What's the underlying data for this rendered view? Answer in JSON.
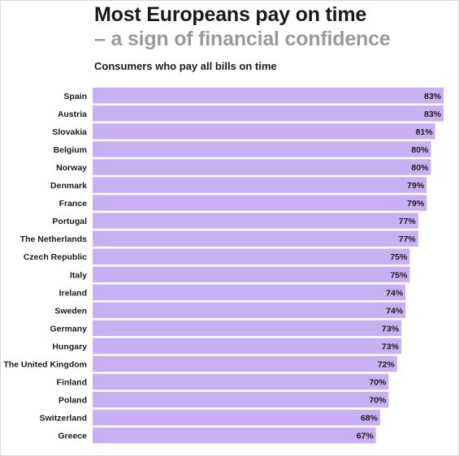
{
  "header": {
    "title": "Most Europeans pay on time",
    "subtitle": "– a sign of financial confidence",
    "caption": "Consumers who pay all bills on time"
  },
  "colors": {
    "bar": "#c9b0f3",
    "title": "#1a1a1a",
    "subtitle": "#9a9a9a"
  },
  "chart_data": {
    "type": "bar",
    "orientation": "horizontal",
    "title": "Most Europeans pay on time",
    "subtitle": "– a sign of financial confidence",
    "ylabel": "",
    "xlabel": "",
    "value_suffix": "%",
    "xlim": [
      0,
      83
    ],
    "grid": false,
    "legend": "none",
    "categories": [
      "Spain",
      "Austria",
      "Slovakia",
      "Belgium",
      "Norway",
      "Denmark",
      "France",
      "Portugal",
      "The Netherlands",
      "Czech Republic",
      "Italy",
      "Ireland",
      "Sweden",
      "Germany",
      "Hungary",
      "The United Kingdom",
      "Finland",
      "Poland",
      "Switzerland",
      "Greece"
    ],
    "values": [
      83,
      83,
      81,
      80,
      80,
      79,
      79,
      77,
      77,
      75,
      75,
      74,
      74,
      73,
      73,
      72,
      70,
      70,
      68,
      67
    ],
    "labels": [
      "83%",
      "83%",
      "81%",
      "80%",
      "80%",
      "79%",
      "79%",
      "77%",
      "77%",
      "75%",
      "75%",
      "74%",
      "74%",
      "73%",
      "73%",
      "72%",
      "70%",
      "70%",
      "68%",
      "67%"
    ]
  }
}
